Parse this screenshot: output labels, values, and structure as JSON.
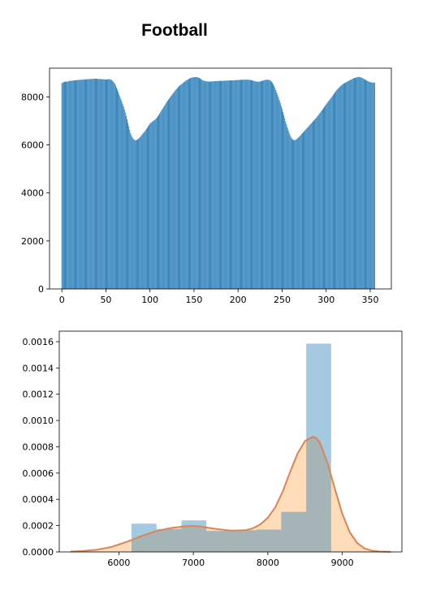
{
  "title": "Football",
  "chart_data": [
    {
      "type": "bar",
      "title": "",
      "xlabel": "",
      "ylabel": "",
      "xlim": [
        -14,
        374
      ],
      "ylim": [
        0,
        9200
      ],
      "bar_color": "#1f77b4",
      "grid": false,
      "xticks": [
        0,
        50,
        100,
        150,
        200,
        250,
        300,
        350
      ],
      "yticks": [
        0,
        2000,
        4000,
        6000,
        8000
      ],
      "x_start": 0,
      "x_step": 1,
      "values": [
        8580,
        8600,
        8620,
        8630,
        8640,
        8640,
        8640,
        8650,
        8660,
        8670,
        8670,
        8680,
        8680,
        8690,
        8690,
        8690,
        8700,
        8700,
        8710,
        8710,
        8710,
        8720,
        8720,
        8720,
        8730,
        8730,
        8730,
        8740,
        8740,
        8740,
        8740,
        8750,
        8750,
        8750,
        8750,
        8750,
        8760,
        8760,
        8760,
        8760,
        8760,
        8750,
        8750,
        8750,
        8750,
        8740,
        8740,
        8740,
        8740,
        8730,
        8730,
        8730,
        8740,
        8740,
        8740,
        8740,
        8720,
        8690,
        8650,
        8610,
        8560,
        8480,
        8390,
        8310,
        8220,
        8120,
        8020,
        7920,
        7820,
        7710,
        7600,
        7480,
        7350,
        7210,
        7070,
        6920,
        6780,
        6640,
        6500,
        6400,
        6320,
        6260,
        6220,
        6200,
        6200,
        6210,
        6230,
        6260,
        6300,
        6340,
        6380,
        6430,
        6480,
        6520,
        6570,
        6620,
        6670,
        6720,
        6780,
        6840,
        6890,
        6920,
        6950,
        6980,
        7010,
        7040,
        7070,
        7110,
        7150,
        7200,
        7250,
        7310,
        7370,
        7430,
        7490,
        7550,
        7610,
        7670,
        7730,
        7790,
        7840,
        7890,
        7940,
        7990,
        8040,
        8090,
        8140,
        8190,
        8240,
        8290,
        8330,
        8370,
        8410,
        8450,
        8480,
        8510,
        8540,
        8570,
        8600,
        8630,
        8660,
        8690,
        8710,
        8730,
        8750,
        8770,
        8790,
        8800,
        8810,
        8820,
        8820,
        8830,
        8830,
        8830,
        8820,
        8810,
        8790,
        8770,
        8750,
        8720,
        8700,
        8680,
        8670,
        8660,
        8650,
        8650,
        8650,
        8640,
        8640,
        8640,
        8650,
        8650,
        8650,
        8660,
        8660,
        8660,
        8660,
        8670,
        8670,
        8670,
        8670,
        8670,
        8670,
        8670,
        8680,
        8680,
        8680,
        8680,
        8680,
        8690,
        8690,
        8690,
        8690,
        8690,
        8690,
        8700,
        8700,
        8700,
        8700,
        8710,
        8710,
        8710,
        8710,
        8710,
        8720,
        8720,
        8720,
        8720,
        8720,
        8720,
        8720,
        8720,
        8720,
        8710,
        8710,
        8700,
        8690,
        8680,
        8670,
        8660,
        8650,
        8640,
        8640,
        8640,
        8640,
        8650,
        8660,
        8670,
        8680,
        8690,
        8700,
        8710,
        8720,
        8720,
        8720,
        8710,
        8700,
        8680,
        8640,
        8590,
        8530,
        8460,
        8380,
        8290,
        8190,
        8080,
        7970,
        7860,
        7740,
        7620,
        7500,
        7370,
        7240,
        7110,
        6980,
        6860,
        6740,
        6620,
        6510,
        6410,
        6330,
        6270,
        6230,
        6210,
        6200,
        6210,
        6230,
        6260,
        6290,
        6330,
        6370,
        6410,
        6450,
        6490,
        6530,
        6570,
        6610,
        6650,
        6690,
        6730,
        6770,
        6820,
        6860,
        6900,
        6940,
        6980,
        7020,
        7060,
        7100,
        7140,
        7190,
        7240,
        7290,
        7340,
        7390,
        7440,
        7490,
        7540,
        7590,
        7640,
        7690,
        7740,
        7790,
        7840,
        7890,
        7940,
        7990,
        8040,
        8090,
        8140,
        8190,
        8240,
        8290,
        8330,
        8370,
        8410,
        8450,
        8480,
        8510,
        8540,
        8560,
        8580,
        8600,
        8620,
        8640,
        8660,
        8680,
        8700,
        8720,
        8740,
        8760,
        8780,
        8790,
        8800,
        8810,
        8820,
        8830,
        8830,
        8830,
        8820,
        8810,
        8790,
        8770,
        8750,
        8730,
        8710,
        8690,
        8670,
        8650,
        8630,
        8620,
        8610,
        8600,
        8600,
        8600,
        8600
      ]
    },
    {
      "type": "histogram+kde",
      "title": "",
      "xlabel": "",
      "ylabel": "",
      "xlim": [
        5200,
        9800
      ],
      "ylim": [
        0,
        0.00168
      ],
      "grid": false,
      "hist_color": "#1f77b4",
      "hist_alpha": 0.4,
      "kde_line_color": "#dd8452",
      "kde_fill_color": "#ffd9b3",
      "xticks": [
        6000,
        7000,
        8000,
        9000
      ],
      "yticks": [
        "0.0000",
        "0.0002",
        "0.0004",
        "0.0006",
        "0.0008",
        "0.0010",
        "0.0012",
        "0.0014",
        "0.0016"
      ],
      "bins": [
        {
          "x0": 6170,
          "x1": 6505,
          "density": 0.000215
        },
        {
          "x0": 6505,
          "x1": 6840,
          "density": 0.000175
        },
        {
          "x0": 6840,
          "x1": 7175,
          "density": 0.00024
        },
        {
          "x0": 7175,
          "x1": 7510,
          "density": 0.00016
        },
        {
          "x0": 7510,
          "x1": 7845,
          "density": 0.000165
        },
        {
          "x0": 7845,
          "x1": 8180,
          "density": 0.00017
        },
        {
          "x0": 8180,
          "x1": 8515,
          "density": 0.000305
        },
        {
          "x0": 8515,
          "x1": 8850,
          "density": 0.001585
        }
      ],
      "kde": {
        "x": [
          5350,
          5500,
          5700,
          5900,
          6100,
          6300,
          6500,
          6700,
          6900,
          7000,
          7100,
          7300,
          7500,
          7700,
          7800,
          7900,
          8000,
          8100,
          8200,
          8300,
          8400,
          8500,
          8600,
          8650,
          8700,
          8800,
          8900,
          9000,
          9100,
          9200,
          9300,
          9400,
          9500,
          9650
        ],
        "y": [
          2e-06,
          6e-06,
          1.6e-05,
          3.8e-05,
          7.5e-05,
          0.00012,
          0.000158,
          0.000182,
          0.000195,
          0.000197,
          0.000193,
          0.000175,
          0.000162,
          0.000165,
          0.00018,
          0.00021,
          0.00026,
          0.00034,
          0.00046,
          0.00061,
          0.00075,
          0.000845,
          0.000875,
          0.000868,
          0.00083,
          0.00068,
          0.00048,
          0.00029,
          0.00015,
          6.8e-05,
          2.6e-05,
          9e-06,
          3e-06,
          5e-07
        ]
      }
    }
  ]
}
